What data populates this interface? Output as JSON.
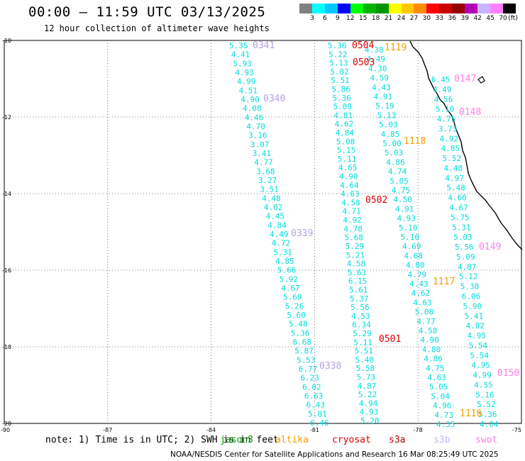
{
  "header": {
    "title": "00:00 – 11:59 UTC 03/13/2025",
    "subtitle": "12 hour collection of altimeter wave heights"
  },
  "legend": {
    "colors": [
      "#808080",
      "#00ffff",
      "#00c8ff",
      "#0000ff",
      "#00ff00",
      "#00b400",
      "#009600",
      "#ffff00",
      "#ffc800",
      "#ff8c00",
      "#ff0000",
      "#c80000",
      "#960000",
      "#b400b4",
      "#c8b4ff",
      "#ff80ff",
      "#000000"
    ],
    "ticks": [
      "3",
      "6",
      "9",
      "12",
      "15",
      "18",
      "21",
      "24",
      "27",
      "30",
      "33",
      "36",
      "39",
      "42",
      "45",
      "70"
    ],
    "unit": "(ft)"
  },
  "map": {
    "lon_range": [
      -90,
      -75
    ],
    "lat_range": [
      -20,
      -10
    ],
    "lon_ticks": [
      "-90",
      "-87",
      "-84",
      "-81",
      "-78",
      "-75"
    ],
    "lat_ticks": [
      "-10",
      "-12",
      "-14",
      "-16",
      "-18",
      "-20"
    ],
    "value_color": "#00dcdc",
    "tracks": [
      {
        "values": [
          "5.35",
          "4.41",
          "5.93",
          "4.93",
          "4.99",
          "4.51",
          "4.90",
          "4.08",
          "4.46",
          "4.70",
          "3.16",
          "3.07",
          "3.41",
          "4.77",
          "3.68",
          "3.27",
          "3.51",
          "4.48",
          "4.02",
          "4.45",
          "4.84",
          "4.49",
          "4.72",
          "5.31",
          "4.85",
          "5.66",
          "5.92",
          "4.67",
          "5.69",
          "5.26",
          "5.60",
          "5.48",
          "5.36",
          "6.68",
          "5.87",
          "5.53",
          "6.77",
          "6.23",
          "6.02",
          "6.63",
          "6.43",
          "5.81",
          "6.46"
        ]
      },
      {
        "values": [
          "5.36",
          "5.22",
          "5.13",
          "5.02",
          "5.51",
          "5.86",
          "5.36",
          "5.09",
          "4.81",
          "4.62",
          "4.84",
          "5.08",
          "5.15",
          "5.11",
          "4.65",
          "4.90",
          "4.64",
          "4.63",
          "4.58",
          "4.71",
          "4.92",
          "4.78",
          "5.68",
          "5.29",
          "5.21",
          "4.58",
          "5.63",
          "6.15",
          "5.61",
          "5.37",
          "5.56",
          "4.53",
          "6.34",
          "5.29",
          "5.11",
          "5.51",
          "5.40",
          "5.58",
          "5.73",
          "4.87",
          "5.22",
          "4.94",
          "4.93",
          "5.20"
        ]
      },
      {
        "values": [
          "4.38",
          "4.49",
          "4.30",
          "4.59",
          "4.43",
          "4.91",
          "5.19",
          "5.13",
          "5.03",
          "4.85",
          "5.00",
          "5.03",
          "4.86",
          "4.74",
          "5.05",
          "4.75",
          "4.50",
          "4.91",
          "4.93",
          "5.10",
          "5.10",
          "4.69",
          "4.68",
          "4.80",
          "4.79",
          "4.43",
          "4.62",
          "4.63",
          "5.08",
          "4.77",
          "4.58",
          "4.90",
          "4.80",
          "4.86",
          "4.75",
          "4.63",
          "5.05",
          "5.04",
          "4.96",
          "4.73",
          "4.35"
        ]
      },
      {
        "values": [
          "6.45",
          "4.49",
          "4.56",
          "5.10",
          "4.75",
          "3.73",
          "4.92",
          "4.85",
          "5.52",
          "4.48",
          "4.97",
          "5.48",
          "4.60",
          "4.67",
          "5.75",
          "5.31",
          "5.03",
          "5.56",
          "5.09",
          "4.87",
          "5.12",
          "5.38",
          "6.06",
          "5.90",
          "5.41",
          "4.82",
          "4.95",
          "5.54",
          "5.54",
          "4.95",
          "4.99",
          "4.55",
          "5.16",
          "5.52",
          "5.36",
          "4.04"
        ]
      }
    ],
    "passes": [
      {
        "id": "0341",
        "color": "#b4a0e6"
      },
      {
        "id": "0340",
        "color": "#b4a0e6"
      },
      {
        "id": "0339",
        "color": "#b4a0e6"
      },
      {
        "id": "0338",
        "color": "#b4a0e6"
      },
      {
        "id": "0504",
        "color": "#dc0000"
      },
      {
        "id": "0503",
        "color": "#dc0000"
      },
      {
        "id": "0502",
        "color": "#dc0000"
      },
      {
        "id": "0501",
        "color": "#dc0000"
      },
      {
        "id": "1119",
        "color": "#f0a000"
      },
      {
        "id": "1118",
        "color": "#f0a000"
      },
      {
        "id": "1117",
        "color": "#f0a000"
      },
      {
        "id": "1116",
        "color": "#f0a000"
      },
      {
        "id": "0147",
        "color": "#ff80e6"
      },
      {
        "id": "0148",
        "color": "#ff80e6"
      },
      {
        "id": "0149",
        "color": "#ff80e6"
      },
      {
        "id": "0150",
        "color": "#ff80e6"
      }
    ]
  },
  "footer": {
    "note": "note: 1) Time is in UTC; 2) SWH is in feet",
    "satellites": [
      {
        "name": "jason3",
        "color": "#00a000"
      },
      {
        "name": "altika",
        "color": "#f0a000"
      },
      {
        "name": "cryosat",
        "color": "#dc0000"
      },
      {
        "name": "s3a",
        "color": "#b40000"
      },
      {
        "name": "s3b",
        "color": "#c8b4ff"
      },
      {
        "name": "swot",
        "color": "#ff80e6"
      }
    ],
    "credit": "NOAA/NESDIS Center for Satellite Applications and Research   16 Mar 08:25:49 UTC 2025"
  }
}
